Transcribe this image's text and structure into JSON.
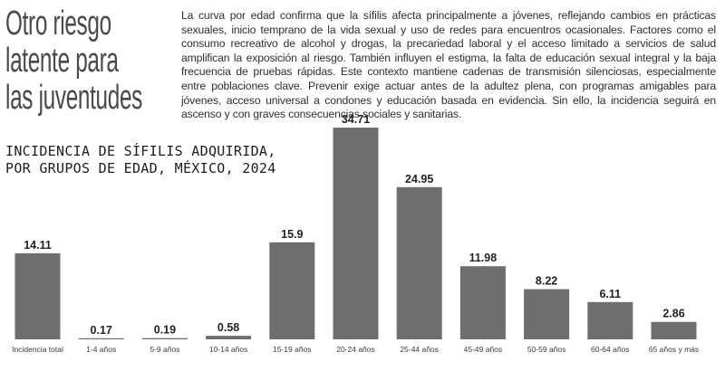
{
  "headline": {
    "lines": [
      "Otro riesgo",
      "latente para",
      "las juventudes"
    ]
  },
  "body": "La curva por edad confirma que la sífilis afecta principalmente a jóvenes, reflejando cambios en prácticas sexuales, inicio temprano de la vida sexual y uso de redes para encuentros ocasionales. Factores como el consumo recreativo de alcohol y drogas, la precariedad laboral y el acceso limitado a servicios de salud amplifican la exposición al riesgo. También influyen el estigma, la falta de educación sexual integral y la baja frecuencia de pruebas rápidas. Este contexto mantiene cadenas de transmisión silenciosas, especialmente entre poblaciones clave. Prevenir exige actuar antes de la adultez plena, con programas amigables para jóvenes, acceso universal a condones y educación basada en evidencia. Sin ello, la incidencia seguirá en ascenso y con graves consecuencias sociales y sanitarias.",
  "chart_data": {
    "type": "bar",
    "title": [
      "INCIDENCIA DE SÍFILIS ADQUIRIDA,",
      "POR GRUPOS DE EDAD, MÉXICO, 2024"
    ],
    "categories": [
      "Incidencia total",
      "1-4 años",
      "5-9 años",
      "10-14 años",
      "15-19 años",
      "20-24 años",
      "25-44 años",
      "45-49 años",
      "50-59 años",
      "60-64 años",
      "65 años y más"
    ],
    "values": [
      14.11,
      0.17,
      0.19,
      0.58,
      15.9,
      34.71,
      24.95,
      11.98,
      8.22,
      6.11,
      2.86
    ],
    "value_labels": [
      "14.11",
      "0.17",
      "0.19",
      "0.58",
      "15.9",
      "34.71",
      "24.95",
      "11.98",
      "8.22",
      "6.11",
      "2.86"
    ],
    "ylim": [
      0,
      34.71
    ],
    "grid": false,
    "legend": "none",
    "bar_color": "#6e6e6e"
  }
}
